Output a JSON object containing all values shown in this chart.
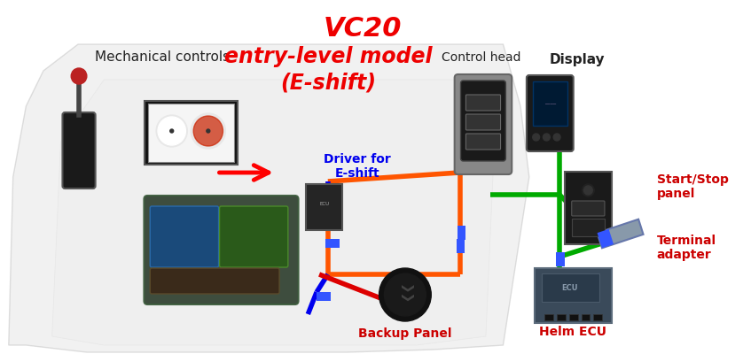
{
  "title_vc20": "VC20",
  "title_entry": "entry-level model",
  "title_eshift": "(E-shift)",
  "label_mech": "Mechanical controls",
  "label_driver": "Driver for\nE-shift",
  "label_control_head": "Control head",
  "label_display": "Display",
  "label_start_stop": "Start/Stop\npanel",
  "label_backup": "Backup Panel",
  "label_helm_ecu": "Helm ECU",
  "label_terminal": "Terminal\nadapter",
  "color_title_vc20": "#EE0000",
  "color_entry": "#EE0000",
  "color_mech": "#222222",
  "color_driver": "#0000EE",
  "color_red_label": "#CC0000",
  "color_line_orange": "#FF5500",
  "color_line_blue": "#0000EE",
  "color_line_green": "#00AA00",
  "color_line_red": "#DD0000",
  "bg_color": "#FFFFFF",
  "connector_color": "#3355FF",
  "boat_fill": "#E0E0E0",
  "boat_edge": "#BBBBBB"
}
